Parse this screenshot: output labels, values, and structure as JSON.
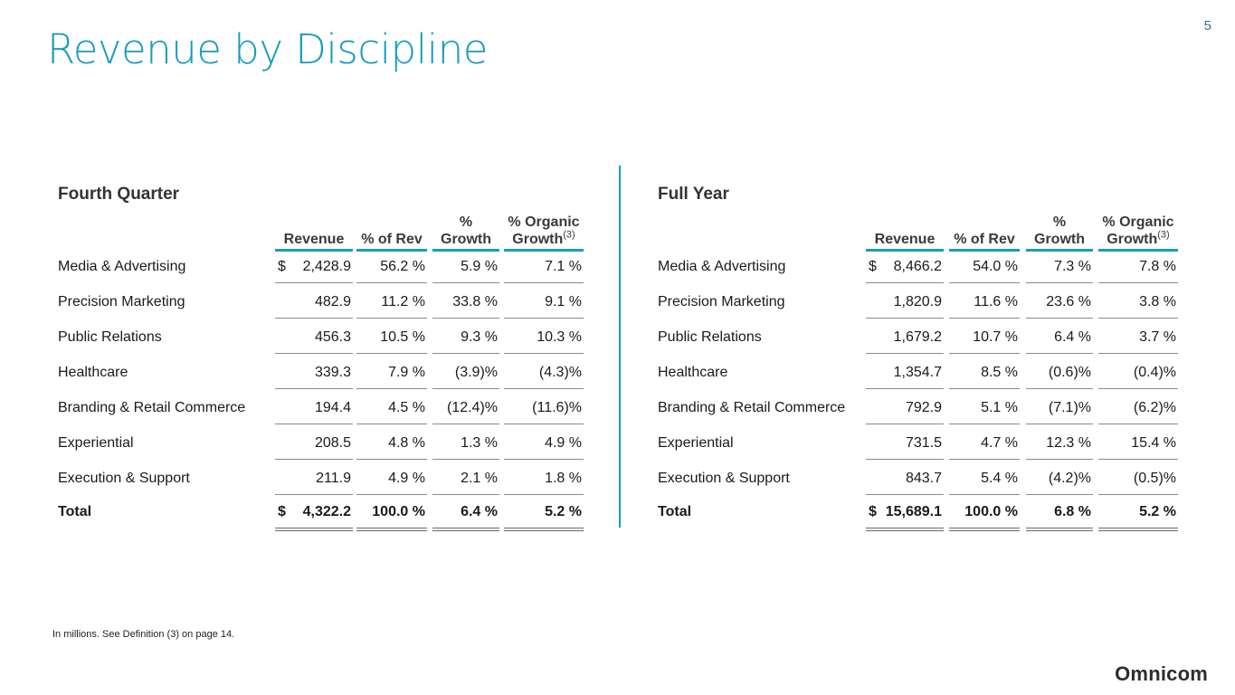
{
  "page_number": "5",
  "title": "Revenue by Discipline",
  "footnote": "In millions.  See Definition (3) on page 14.",
  "logo": "Omnicom",
  "columns": {
    "revenue": "Revenue",
    "pct_rev": "% of Rev",
    "growth_line1": "%",
    "growth_line2": "Growth",
    "organic_line1": "% Organic",
    "organic_line2": "Growth",
    "organic_sup": "(3)"
  },
  "fourth_quarter": {
    "title": "Fourth Quarter",
    "rows": [
      {
        "label": "Media & Advertising",
        "currency": "$",
        "revenue": "2,428.9",
        "pct_rev": "56.2 %",
        "growth": "5.9 %",
        "organic": "7.1 %"
      },
      {
        "label": "Precision Marketing",
        "currency": "",
        "revenue": "482.9",
        "pct_rev": "11.2 %",
        "growth": "33.8 %",
        "organic": "9.1 %"
      },
      {
        "label": "Public Relations",
        "currency": "",
        "revenue": "456.3",
        "pct_rev": "10.5 %",
        "growth": "9.3 %",
        "organic": "10.3 %"
      },
      {
        "label": "Healthcare",
        "currency": "",
        "revenue": "339.3",
        "pct_rev": "7.9 %",
        "growth": "(3.9)%",
        "organic": "(4.3)%"
      },
      {
        "label": "Branding & Retail Commerce",
        "currency": "",
        "revenue": "194.4",
        "pct_rev": "4.5 %",
        "growth": "(12.4)%",
        "organic": "(11.6)%"
      },
      {
        "label": "Experiential",
        "currency": "",
        "revenue": "208.5",
        "pct_rev": "4.8 %",
        "growth": "1.3 %",
        "organic": "4.9 %"
      },
      {
        "label": "Execution & Support",
        "currency": "",
        "revenue": "211.9",
        "pct_rev": "4.9 %",
        "growth": "2.1 %",
        "organic": "1.8 %"
      }
    ],
    "total": {
      "label": "Total",
      "currency": "$",
      "revenue": "4,322.2",
      "pct_rev": "100.0 %",
      "growth": "6.4 %",
      "organic": "5.2 %"
    }
  },
  "full_year": {
    "title": "Full Year",
    "rows": [
      {
        "label": "Media & Advertising",
        "currency": "$",
        "revenue": "8,466.2",
        "pct_rev": "54.0 %",
        "growth": "7.3 %",
        "organic": "7.8 %"
      },
      {
        "label": "Precision Marketing",
        "currency": "",
        "revenue": "1,820.9",
        "pct_rev": "11.6 %",
        "growth": "23.6 %",
        "organic": "3.8 %"
      },
      {
        "label": "Public Relations",
        "currency": "",
        "revenue": "1,679.2",
        "pct_rev": "10.7 %",
        "growth": "6.4 %",
        "organic": "3.7 %"
      },
      {
        "label": "Healthcare",
        "currency": "",
        "revenue": "1,354.7",
        "pct_rev": "8.5 %",
        "growth": "(0.6)%",
        "organic": "(0.4)%"
      },
      {
        "label": "Branding & Retail Commerce",
        "currency": "",
        "revenue": "792.9",
        "pct_rev": "5.1 %",
        "growth": "(7.1)%",
        "organic": "(6.2)%"
      },
      {
        "label": "Experiential",
        "currency": "",
        "revenue": "731.5",
        "pct_rev": "4.7 %",
        "growth": "12.3 %",
        "organic": "15.4 %"
      },
      {
        "label": "Execution & Support",
        "currency": "",
        "revenue": "843.7",
        "pct_rev": "5.4 %",
        "growth": "(4.2)%",
        "organic": "(0.5)%"
      }
    ],
    "total": {
      "label": "Total",
      "currency": "$",
      "revenue": "15,689.1",
      "pct_rev": "100.0 %",
      "growth": "6.8 %",
      "organic": "5.2 %"
    }
  }
}
